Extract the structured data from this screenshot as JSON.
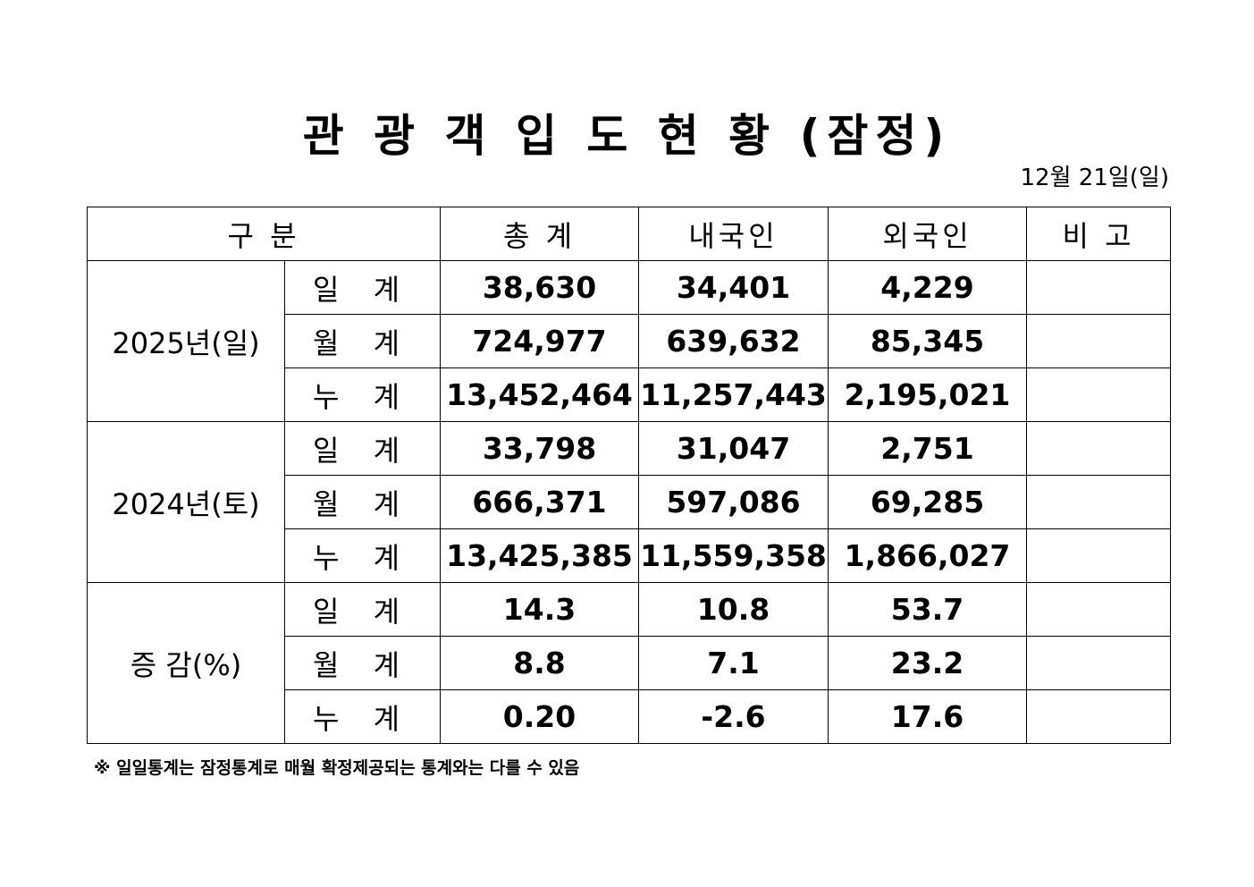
{
  "title": "관 광 객 입 도 현 황 (잠정)",
  "date": "12월 21일(일)",
  "table": {
    "header": [
      "구 분",
      "총 계",
      "내국인",
      "외국인",
      "비 고"
    ],
    "groups": [
      {
        "label": "2025년(일)",
        "rows": [
          {
            "label": "일 계",
            "values": [
              "38,630",
              "34,401",
              "4,229"
            ]
          },
          {
            "label": "월 계",
            "values": [
              "724,977",
              "639,632",
              "85,345"
            ]
          },
          {
            "label": "누 계",
            "values": [
              "13,452,464",
              "11,257,443",
              "2,195,021"
            ]
          }
        ]
      },
      {
        "label": "2024년(토)",
        "rows": [
          {
            "label": "일 계",
            "values": [
              "33,798",
              "31,047",
              "2,751"
            ]
          },
          {
            "label": "월 계",
            "values": [
              "666,371",
              "597,086",
              "69,285"
            ]
          },
          {
            "label": "누 계",
            "values": [
              "13,425,385",
              "11,559,358",
              "1,866,027"
            ]
          }
        ]
      },
      {
        "label": "증 감(%)",
        "rows": [
          {
            "label": "일 계",
            "values": [
              "14.3",
              "10.8",
              "53.7"
            ]
          },
          {
            "label": "월 계",
            "values": [
              "8.8",
              "7.1",
              "23.2"
            ]
          },
          {
            "label": "누 계",
            "values": [
              "0.20",
              "-2.6",
              "17.6"
            ]
          }
        ]
      }
    ]
  },
  "footnote": "※ 일일통계는 잠정통계로 매월 확정제공되는 통계와는 다를 수 있음"
}
